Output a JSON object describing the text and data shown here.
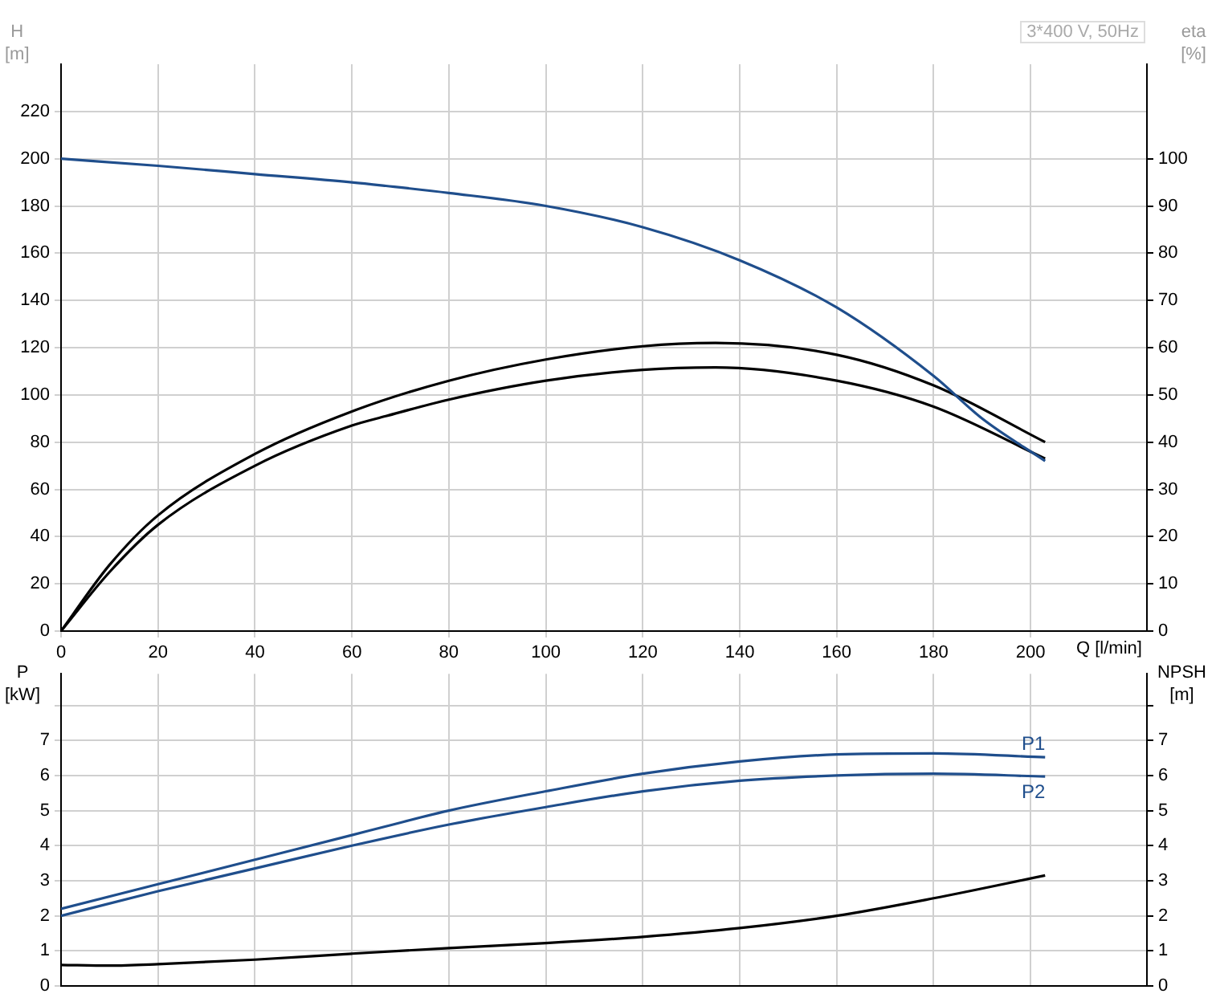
{
  "chart_data": [
    {
      "type": "line",
      "xlabel": "Q [l/min]",
      "ylabel": "H\n[m]",
      "y2label": "eta\n[%]",
      "annotations": [
        "3*400 V, 50Hz"
      ],
      "xlim": [
        0,
        224
      ],
      "xticks": [
        0,
        20,
        40,
        60,
        80,
        100,
        120,
        140,
        160,
        180,
        200
      ],
      "ylim": [
        0,
        240
      ],
      "yticks": [
        0,
        20,
        40,
        60,
        80,
        100,
        120,
        140,
        160,
        180,
        200,
        220
      ],
      "y2lim": [
        0,
        120
      ],
      "y2ticks": [
        0,
        10,
        20,
        30,
        40,
        50,
        60,
        70,
        80,
        90,
        100
      ],
      "grid": true,
      "legend": false,
      "marker": "none",
      "series": [
        {
          "color": "#1f4e8c",
          "x": [
            0,
            20,
            40,
            60,
            67,
            80,
            100,
            120,
            140,
            160,
            180,
            190,
            203
          ],
          "values": [
            200,
            197,
            193.5,
            190,
            188.5,
            185.5,
            180,
            171,
            157,
            137,
            108,
            90,
            72
          ]
        },
        {
          "color": "#000000",
          "axis": "y2",
          "x": [
            0,
            10,
            20,
            40,
            60,
            80,
            100,
            120,
            135,
            160,
            180,
            203
          ],
          "values": [
            0,
            14,
            24.5,
            37.5,
            46.5,
            53,
            57.5,
            60.3,
            61,
            58.5,
            52,
            40
          ]
        },
        {
          "color": "#000000",
          "axis": "y2",
          "x": [
            0,
            10,
            20,
            40,
            60,
            67,
            80,
            100,
            120,
            135,
            160,
            180,
            203
          ],
          "values": [
            0,
            12.5,
            22.5,
            35,
            43.5,
            45.5,
            49,
            53,
            55.3,
            55.8,
            53,
            47.5,
            36.5
          ]
        }
      ]
    },
    {
      "type": "line",
      "ylabel": "P\n[kW]",
      "y2label": "NPSH\n[m]",
      "xlim": [
        0,
        224
      ],
      "xticks": [
        0,
        20,
        40,
        60,
        80,
        100,
        120,
        140,
        160,
        180,
        200
      ],
      "ylim": [
        0,
        8.9
      ],
      "yticks": [
        0,
        1,
        2,
        3,
        4,
        5,
        6,
        7,
        {
          "value": 8,
          "label": null
        }
      ],
      "y2lim": [
        0,
        8.9
      ],
      "y2ticks": [
        0,
        1,
        2,
        3,
        4,
        5,
        6,
        7,
        {
          "value": 8,
          "label": null
        }
      ],
      "tick_labels": "y",
      "grid": true,
      "legend": false,
      "marker": "none",
      "series": [
        {
          "name": "P1",
          "color": "#1f4e8c",
          "x": [
            0,
            20,
            40,
            60,
            67,
            80,
            100,
            120,
            140,
            160,
            180,
            203
          ],
          "values": [
            2.2,
            2.9,
            3.6,
            4.3,
            4.55,
            5.0,
            5.55,
            6.05,
            6.4,
            6.6,
            6.63,
            6.52
          ]
        },
        {
          "name": "P2",
          "color": "#1f4e8c",
          "x": [
            0,
            20,
            40,
            60,
            80,
            100,
            120,
            140,
            160,
            180,
            203
          ],
          "values": [
            2.0,
            2.7,
            3.35,
            4.0,
            4.6,
            5.1,
            5.55,
            5.85,
            6.0,
            6.05,
            5.97
          ]
        },
        {
          "color": "#000000",
          "axis": "y2",
          "x": [
            0,
            10,
            20,
            40,
            60,
            80,
            100,
            120,
            140,
            160,
            180,
            203
          ],
          "values": [
            0.6,
            0.58,
            0.62,
            0.75,
            0.92,
            1.08,
            1.22,
            1.4,
            1.65,
            2.0,
            2.5,
            3.15
          ]
        }
      ]
    }
  ]
}
